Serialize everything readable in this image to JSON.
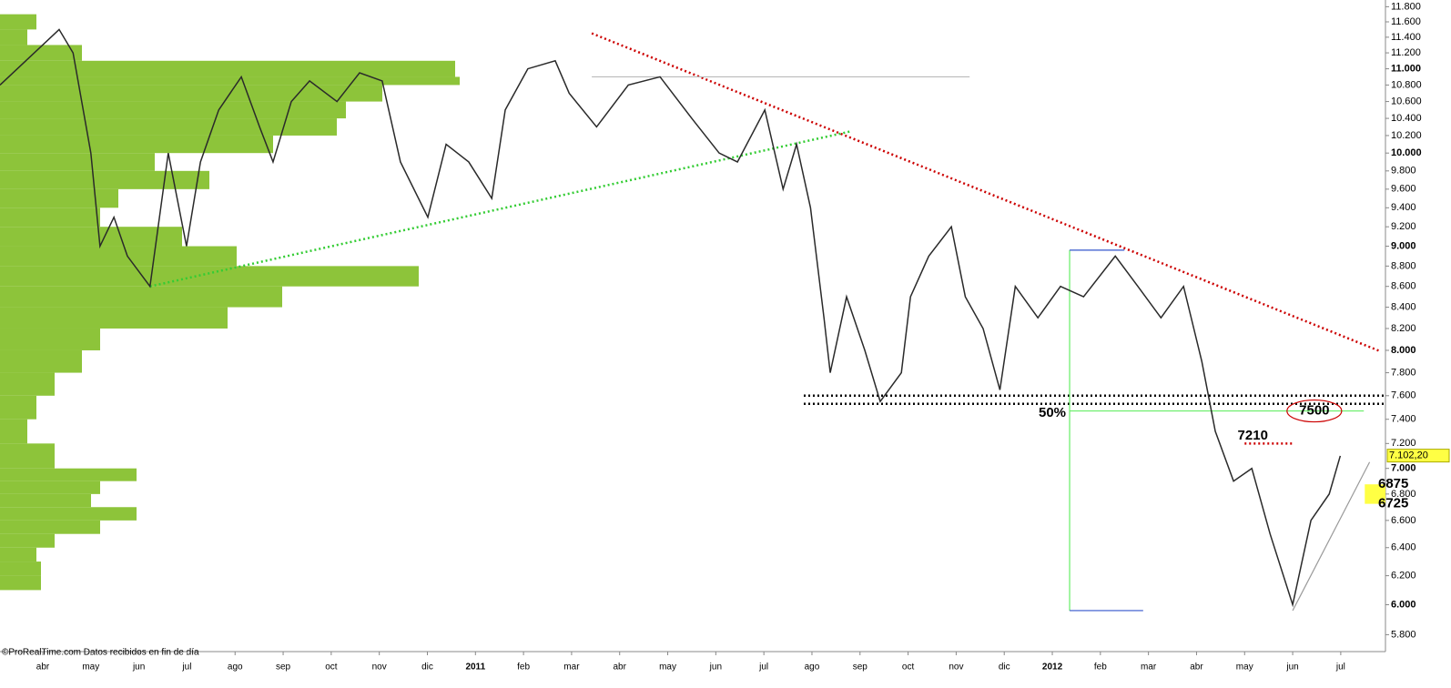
{
  "chart_data": {
    "type": "line",
    "log_scale": true,
    "footer": "©ProRealTime.com  Datos recibidos en fin de día",
    "xlim": [
      -0.89,
      27.93
    ],
    "ylim": [
      5690,
      11890
    ],
    "xticks": [
      {
        "value": 0,
        "label": "abr"
      },
      {
        "value": 1,
        "label": "may"
      },
      {
        "value": 2,
        "label": "jun"
      },
      {
        "value": 3,
        "label": "jul"
      },
      {
        "value": 4,
        "label": "ago"
      },
      {
        "value": 5,
        "label": "sep"
      },
      {
        "value": 6,
        "label": "oct"
      },
      {
        "value": 7,
        "label": "nov"
      },
      {
        "value": 8,
        "label": "dic"
      },
      {
        "value": 9,
        "label": "2011"
      },
      {
        "value": 10,
        "label": "feb"
      },
      {
        "value": 11,
        "label": "mar"
      },
      {
        "value": 12,
        "label": "abr"
      },
      {
        "value": 13,
        "label": "may"
      },
      {
        "value": 14,
        "label": "jun"
      },
      {
        "value": 15,
        "label": "jul"
      },
      {
        "value": 16,
        "label": "ago"
      },
      {
        "value": 17,
        "label": "sep"
      },
      {
        "value": 18,
        "label": "oct"
      },
      {
        "value": 19,
        "label": "nov"
      },
      {
        "value": 20,
        "label": "dic"
      },
      {
        "value": 21,
        "label": "2012"
      },
      {
        "value": 22,
        "label": "feb"
      },
      {
        "value": 23,
        "label": "mar"
      },
      {
        "value": 24,
        "label": "abr"
      },
      {
        "value": 25,
        "label": "may"
      },
      {
        "value": 26,
        "label": "jun"
      },
      {
        "value": 27,
        "label": "jul"
      }
    ],
    "yticks": [
      {
        "value": 5800,
        "label": "5.800"
      },
      {
        "value": 6000,
        "label": "6.000"
      },
      {
        "value": 6200,
        "label": "6.200"
      },
      {
        "value": 6400,
        "label": "6.400"
      },
      {
        "value": 6600,
        "label": "6.600"
      },
      {
        "value": 6800,
        "label": "6.800"
      },
      {
        "value": 7000,
        "label": "7.000"
      },
      {
        "value": 7200,
        "label": "7.200"
      },
      {
        "value": 7400,
        "label": "7.400"
      },
      {
        "value": 7600,
        "label": "7.600"
      },
      {
        "value": 7800,
        "label": "7.800"
      },
      {
        "value": 8000,
        "label": "8.000"
      },
      {
        "value": 8200,
        "label": "8.200"
      },
      {
        "value": 8400,
        "label": "8.400"
      },
      {
        "value": 8600,
        "label": "8.600"
      },
      {
        "value": 8800,
        "label": "8.800"
      },
      {
        "value": 9000,
        "label": "9.000"
      },
      {
        "value": 9200,
        "label": "9.200"
      },
      {
        "value": 9400,
        "label": "9.400"
      },
      {
        "value": 9600,
        "label": "9.600"
      },
      {
        "value": 9800,
        "label": "9.800"
      },
      {
        "value": 10000,
        "label": "10.000"
      },
      {
        "value": 10200,
        "label": "10.200"
      },
      {
        "value": 10400,
        "label": "10.400"
      },
      {
        "value": 10600,
        "label": "10.600"
      },
      {
        "value": 10800,
        "label": "10.800"
      },
      {
        "value": 11000,
        "label": "11.000"
      },
      {
        "value": 11200,
        "label": "11.200"
      },
      {
        "value": 11400,
        "label": "11.400"
      },
      {
        "value": 11600,
        "label": "11.600"
      },
      {
        "value": 11800,
        "label": "11.800"
      }
    ],
    "series": [
      {
        "color": "#2a2a2a",
        "x": [
          -0.89,
          0.34,
          0.63,
          1.0,
          1.19,
          1.48,
          1.76,
          2.23,
          2.61,
          2.99,
          3.28,
          3.66,
          4.13,
          4.51,
          4.79,
          5.17,
          5.55,
          6.12,
          6.59,
          7.06,
          7.44,
          8.01,
          8.39,
          8.86,
          9.34,
          9.62,
          10.09,
          10.66,
          10.95,
          11.52,
          12.18,
          12.84,
          13.5,
          14.07,
          14.45,
          15.02,
          15.4,
          15.68,
          15.97,
          16.25,
          16.38,
          16.72,
          17.1,
          17.42,
          17.86,
          18.05,
          18.43,
          18.9,
          19.19,
          19.56,
          19.91,
          20.23,
          20.7,
          21.17,
          21.65,
          22.31,
          22.78,
          23.26,
          23.73,
          24.11,
          24.39,
          24.77,
          25.15,
          25.53,
          26.0,
          26.38,
          26.76,
          26.99
        ],
        "values": [
          10800,
          11500,
          11200,
          10000,
          9000,
          9300,
          8900,
          8600,
          10000,
          9000,
          9900,
          10500,
          10900,
          10300,
          9900,
          10600,
          10850,
          10600,
          10950,
          10850,
          9900,
          9300,
          10100,
          9900,
          9500,
          10500,
          11000,
          11100,
          10700,
          10300,
          10800,
          10900,
          10400,
          10000,
          9900,
          10500,
          9600,
          10100,
          9400,
          8300,
          7800,
          8500,
          8000,
          7550,
          7800,
          8500,
          8900,
          9200,
          8500,
          8200,
          7650,
          8600,
          8300,
          8600,
          8500,
          8900,
          8600,
          8300,
          8600,
          7900,
          7300,
          6900,
          7000,
          6500,
          6000,
          6600,
          6800,
          7100
        ]
      }
    ],
    "volume_profile": {
      "color": "#8dc43a",
      "prices": [
        6100,
        6200,
        6300,
        6400,
        6500,
        6600,
        6700,
        6800,
        6900,
        7000,
        7200,
        7400,
        7600,
        7800,
        8000,
        8200,
        8400,
        8600,
        8800,
        9000,
        9200,
        9400,
        9600,
        9800,
        10000,
        10200,
        10400,
        10600,
        10800,
        10900,
        11100,
        11300,
        11500
      ],
      "values": [
        45,
        45,
        40,
        60,
        110,
        150,
        100,
        110,
        150,
        60,
        30,
        40,
        60,
        90,
        110,
        250,
        310,
        460,
        260,
        200,
        110,
        130,
        230,
        170,
        300,
        370,
        380,
        420,
        505,
        500,
        90,
        30,
        40
      ]
    },
    "lines": [
      {
        "x": [
          11.42,
          27.83
        ],
        "y": [
          11450,
          7990
        ],
        "color": "#cc0000",
        "style": "dotted"
      },
      {
        "x": [
          2.23,
          16.82
        ],
        "y": [
          8600,
          10250
        ],
        "color": "#33cc33",
        "style": "dotted"
      },
      {
        "x": [
          15.83,
          27.93
        ],
        "y": [
          7600,
          7600
        ],
        "color": "#000000",
        "style": "dotted"
      },
      {
        "x": [
          15.83,
          27.93
        ],
        "y": [
          7530,
          7530
        ],
        "color": "#000000",
        "style": "dotted"
      },
      {
        "x": [
          11.42,
          19.28
        ],
        "y": [
          10900,
          10900
        ],
        "color": "#bbbbbb",
        "style": "solid"
      },
      {
        "x": [
          21.36,
          27.48
        ],
        "y": [
          7470,
          7470
        ],
        "color": "#66ee66",
        "style": "solid"
      },
      {
        "x": [
          21.36,
          21.36
        ],
        "y": [
          8960,
          5960
        ],
        "color": "#66ee66",
        "style": "solid"
      },
      {
        "x": [
          21.36,
          22.89
        ],
        "y": [
          5960,
          5960
        ],
        "color": "#3355cc",
        "style": "solid"
      },
      {
        "x": [
          21.36,
          22.5
        ],
        "y": [
          8960,
          8960
        ],
        "color": "#3355cc",
        "style": "solid"
      },
      {
        "x": [
          25.0,
          26.0
        ],
        "y": [
          7200,
          7200
        ],
        "color": "#cc0000",
        "style": "dotted"
      },
      {
        "x": [
          26.0,
          27.6
        ],
        "y": [
          5960,
          7050
        ],
        "color": "#999999",
        "style": "solid"
      }
    ],
    "annotations": [
      {
        "text": "50%",
        "x": 21.0,
        "y": 7450,
        "color": "#44ee44"
      },
      {
        "text": 7500,
        "x": 26.45,
        "y": 7470,
        "color": "#cc0000",
        "oval": true
      },
      {
        "text": 7210,
        "x": 25.17,
        "y": 7260,
        "color": "#cc0000"
      }
    ],
    "zone": {
      "from": 6725,
      "to": 6875,
      "color": "#ffff44"
    },
    "last_price": {
      "value": 7102.2,
      "label": "7.102,20"
    }
  }
}
